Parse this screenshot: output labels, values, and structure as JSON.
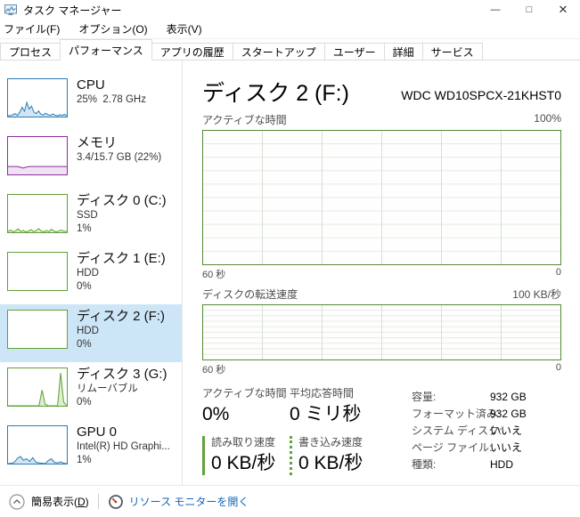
{
  "window": {
    "title": "タスク マネージャー",
    "controls": {
      "minimize": "—",
      "maximize": "□",
      "close": "✕"
    }
  },
  "menu": {
    "items": [
      {
        "id": "file",
        "label": "ファイル(F)"
      },
      {
        "id": "options",
        "label": "オプション(O)"
      },
      {
        "id": "view",
        "label": "表示(V)"
      }
    ]
  },
  "tabs": [
    {
      "id": "processes",
      "label": "プロセス",
      "active": false
    },
    {
      "id": "performance",
      "label": "パフォーマンス",
      "active": true
    },
    {
      "id": "app-history",
      "label": "アプリの履歴",
      "active": false
    },
    {
      "id": "startup",
      "label": "スタートアップ",
      "active": false
    },
    {
      "id": "users",
      "label": "ユーザー",
      "active": false
    },
    {
      "id": "details",
      "label": "詳細",
      "active": false
    },
    {
      "id": "services",
      "label": "サービス",
      "active": false
    }
  ],
  "sidebar": {
    "items": [
      {
        "id": "cpu",
        "title": "CPU",
        "lines": [
          "25%  2.78 GHz"
        ],
        "selected": false,
        "color": "#2c7cb8",
        "fill": "#d3e5f2",
        "spark": [
          3,
          2,
          5,
          8,
          3,
          12,
          25,
          14,
          38,
          20,
          28,
          12,
          8,
          15,
          6,
          4,
          9,
          5,
          3,
          7,
          4,
          2,
          5,
          3,
          6,
          2
        ]
      },
      {
        "id": "memory",
        "title": "メモリ",
        "lines": [
          "3.4/15.7 GB (22%)"
        ],
        "selected": false,
        "color": "#8b2f9b",
        "fill": "#f0e2f4",
        "spark": [
          21,
          21,
          21,
          21,
          20,
          17,
          19,
          21,
          21,
          21,
          21,
          21,
          21,
          21,
          21,
          21,
          21,
          21,
          21,
          21,
          21
        ]
      },
      {
        "id": "disk-0",
        "title": "ディスク 0 (C:)",
        "lines": [
          "SSD",
          "1%"
        ],
        "selected": false,
        "color": "#61a038",
        "fill": "#ddedd0",
        "spark": [
          2,
          6,
          1,
          4,
          9,
          2,
          5,
          1,
          3,
          7,
          2,
          4,
          10,
          3,
          1,
          5,
          2,
          8,
          3,
          1,
          4,
          6,
          2,
          3
        ]
      },
      {
        "id": "disk-1",
        "title": "ディスク 1 (E:)",
        "lines": [
          "HDD",
          "0%"
        ],
        "selected": false,
        "color": "#61a038",
        "fill": "#ddedd0",
        "spark": []
      },
      {
        "id": "disk-2",
        "title": "ディスク 2 (F:)",
        "lines": [
          "HDD",
          "0%"
        ],
        "selected": true,
        "color": "#61a038",
        "fill": "#ddedd0",
        "spark": []
      },
      {
        "id": "disk-3",
        "title": "ディスク 3 (G:)",
        "lines": [
          "リムーバブル",
          "0%"
        ],
        "selected": false,
        "color": "#61a038",
        "fill": "#ddedd0",
        "spark": [
          0,
          0,
          0,
          0,
          0,
          0,
          0,
          0,
          0,
          0,
          0,
          42,
          4,
          0,
          0,
          0,
          0,
          88,
          10,
          0
        ]
      },
      {
        "id": "gpu-0",
        "title": "GPU 0",
        "lines": [
          "Intel(R) HD Graphi...",
          "1%"
        ],
        "selected": false,
        "color": "#2c7cb8",
        "fill": "#d3e5f2",
        "spark": [
          0,
          1,
          3,
          14,
          19,
          9,
          13,
          6,
          16,
          4,
          2,
          1,
          0,
          8,
          13,
          3,
          2,
          5,
          1,
          0
        ]
      }
    ]
  },
  "main": {
    "title": "ディスク 2 (F:)",
    "device": "WDC WD10SPCX-21KHST0",
    "chart1": {
      "label": "アクティブな時間",
      "max": "100%",
      "x_left": "60 秒",
      "x_right": "0"
    },
    "chart2": {
      "label": "ディスクの転送速度",
      "max": "100 KB/秒",
      "x_left": "60 秒",
      "x_right": "0"
    },
    "stats": {
      "active_time": {
        "label": "アクティブな時間",
        "value": "0%"
      },
      "avg_response": {
        "label": "平均応答時間",
        "value": "0 ミリ秒"
      },
      "read_speed": {
        "label": "読み取り速度",
        "value": "0 KB/秒"
      },
      "write_speed": {
        "label": "書き込み速度",
        "value": "0 KB/秒"
      },
      "details": [
        {
          "label": "容量:",
          "value": "932 GB"
        },
        {
          "label": "フォーマット済み:",
          "value": "932 GB"
        },
        {
          "label": "システム ディスク:",
          "value": "いいえ"
        },
        {
          "label": "ページ ファイル:",
          "value": "いいえ"
        },
        {
          "label": "種類:",
          "value": "HDD"
        }
      ]
    }
  },
  "footer": {
    "simple_view": {
      "prefix": "簡易表示(",
      "key": "D",
      "suffix": ")"
    },
    "resource_monitor": "リソース モニターを開く"
  },
  "colors": {
    "cpu_blue": "#2c7cb8",
    "memory_purple": "#8b2f9b",
    "disk_green": "#61a038",
    "main_chart_border": "#568a38",
    "selection_highlight": "#cde6f7",
    "link_blue": "#1466b8",
    "speed_bar_green": "#5fa33c"
  }
}
